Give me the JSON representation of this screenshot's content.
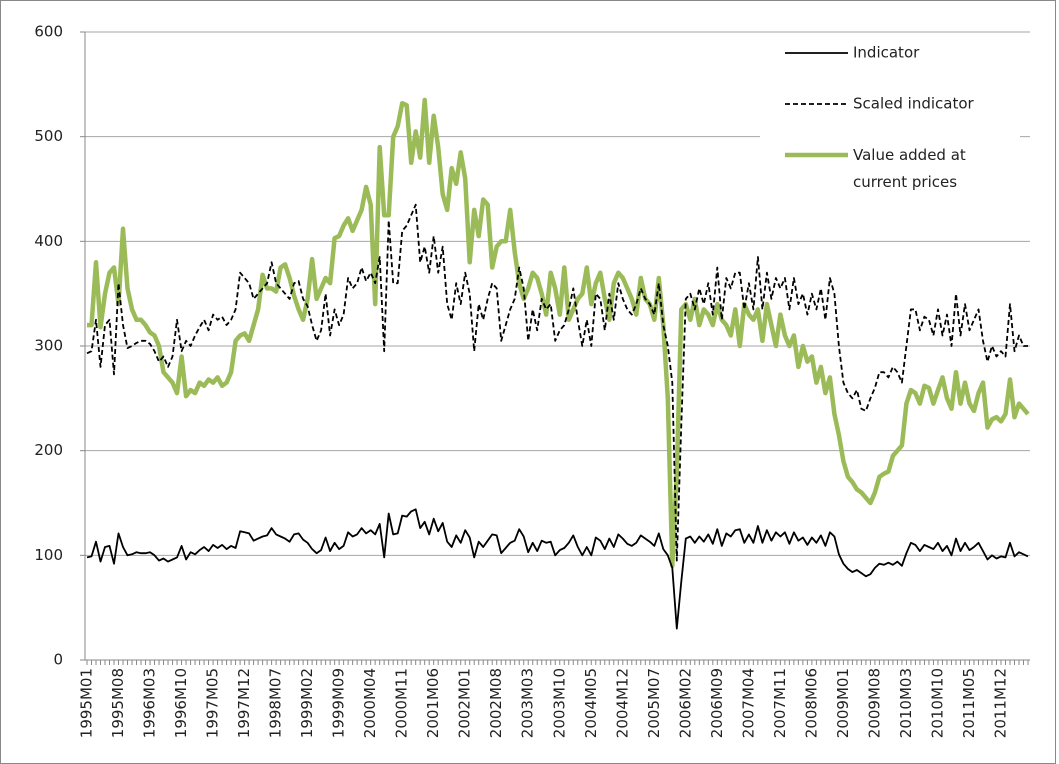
{
  "chart_data": {
    "type": "line",
    "categories": [
      "1995M01",
      null,
      null,
      null,
      null,
      null,
      null,
      "1995M08",
      null,
      null,
      null,
      null,
      null,
      null,
      "1996M03",
      null,
      null,
      null,
      null,
      null,
      null,
      "1996M10",
      null,
      null,
      null,
      null,
      null,
      null,
      "1997M05",
      null,
      null,
      null,
      null,
      null,
      null,
      "1997M12",
      null,
      null,
      null,
      null,
      null,
      null,
      "1998M07",
      null,
      null,
      null,
      null,
      null,
      null,
      "1999M02",
      null,
      null,
      null,
      null,
      null,
      null,
      "1999M09",
      null,
      null,
      null,
      null,
      null,
      null,
      "2000M04",
      null,
      null,
      null,
      null,
      null,
      null,
      "2000M11",
      null,
      null,
      null,
      null,
      null,
      null,
      "2001M06",
      null,
      null,
      null,
      null,
      null,
      null,
      "2002M01",
      null,
      null,
      null,
      null,
      null,
      null,
      "2002M08",
      null,
      null,
      null,
      null,
      null,
      null,
      "2003M03",
      null,
      null,
      null,
      null,
      null,
      null,
      "2003M10",
      null,
      null,
      null,
      null,
      null,
      null,
      "2004M05",
      null,
      null,
      null,
      null,
      null,
      null,
      "2004M12",
      null,
      null,
      null,
      null,
      null,
      null,
      "2005M07",
      null,
      null,
      null,
      null,
      null,
      null,
      "2006M02",
      null,
      null,
      null,
      null,
      null,
      null,
      "2006M09",
      null,
      null,
      null,
      null,
      null,
      null,
      "2007M04",
      null,
      null,
      null,
      null,
      null,
      null,
      "2007M11",
      null,
      null,
      null,
      null,
      null,
      null,
      "2008M06",
      null,
      null,
      null,
      null,
      null,
      null,
      "2009M01",
      null,
      null,
      null,
      null,
      null,
      null,
      "2009M08",
      null,
      null,
      null,
      null,
      null,
      null,
      "2010M03",
      null,
      null,
      null,
      null,
      null,
      null,
      "2010M10",
      null,
      null,
      null,
      null,
      null,
      null,
      "2011M05",
      null,
      null,
      null,
      null,
      null,
      null,
      "2011M12",
      null,
      null,
      null,
      null,
      null,
      null
    ],
    "series": [
      {
        "name": "Indicator",
        "color": "#000000",
        "dash": "solid",
        "values": [
          98,
          99,
          113,
          94,
          108,
          109,
          92,
          121,
          108,
          100,
          101,
          103,
          102,
          102,
          103,
          100,
          95,
          97,
          94,
          96,
          98,
          109,
          96,
          103,
          101,
          105,
          108,
          104,
          110,
          107,
          110,
          106,
          109,
          107,
          123,
          122,
          121,
          114,
          116,
          118,
          119,
          126,
          120,
          118,
          116,
          113,
          120,
          121,
          115,
          112,
          106,
          102,
          105,
          117,
          104,
          112,
          106,
          109,
          122,
          118,
          120,
          126,
          121,
          124,
          120,
          130,
          98,
          140,
          120,
          121,
          138,
          137,
          142,
          144,
          126,
          132,
          120,
          135,
          123,
          131,
          113,
          108,
          119,
          112,
          124,
          117,
          98,
          113,
          108,
          114,
          120,
          119,
          102,
          107,
          112,
          114,
          125,
          118,
          103,
          112,
          104,
          114,
          112,
          113,
          100,
          105,
          107,
          112,
          119,
          108,
          100,
          108,
          100,
          117,
          114,
          106,
          116,
          108,
          120,
          116,
          111,
          109,
          112,
          119,
          116,
          113,
          109,
          121,
          106,
          100,
          88,
          30,
          75,
          116,
          118,
          112,
          118,
          113,
          120,
          111,
          125,
          109,
          121,
          118,
          124,
          125,
          112,
          120,
          112,
          128,
          112,
          124,
          114,
          122,
          118,
          122,
          111,
          122,
          114,
          117,
          110,
          117,
          112,
          119,
          109,
          122,
          118,
          101,
          92,
          87,
          84,
          86,
          83,
          80,
          82,
          88,
          92,
          91,
          93,
          91,
          94,
          90,
          102,
          112,
          110,
          104,
          110,
          108,
          106,
          112,
          104,
          109,
          100,
          116,
          104,
          112,
          105,
          108,
          112,
          104,
          96,
          100,
          97,
          99,
          98,
          112,
          99,
          103,
          101,
          99
        ]
      },
      {
        "name": "Scaled indicator",
        "color": "#000000",
        "dash": "dashed",
        "values": [
          293,
          295,
          325,
          280,
          320,
          325,
          273,
          360,
          320,
          298,
          300,
          303,
          305,
          305,
          302,
          295,
          285,
          290,
          280,
          290,
          325,
          295,
          305,
          300,
          310,
          318,
          325,
          315,
          330,
          325,
          328,
          320,
          325,
          335,
          370,
          365,
          360,
          345,
          350,
          355,
          360,
          380,
          360,
          355,
          350,
          345,
          360,
          362,
          345,
          338,
          320,
          305,
          315,
          350,
          310,
          335,
          320,
          330,
          365,
          355,
          360,
          375,
          362,
          370,
          360,
          385,
          295,
          420,
          360,
          360,
          410,
          415,
          425,
          435,
          380,
          395,
          370,
          405,
          370,
          395,
          340,
          325,
          360,
          340,
          370,
          350,
          295,
          340,
          325,
          345,
          360,
          355,
          305,
          320,
          335,
          345,
          375,
          355,
          305,
          335,
          315,
          345,
          335,
          340,
          305,
          315,
          320,
          335,
          355,
          325,
          300,
          325,
          300,
          350,
          345,
          315,
          350,
          325,
          360,
          345,
          335,
          330,
          340,
          355,
          345,
          340,
          330,
          360,
          320,
          300,
          265,
          95,
          225,
          345,
          350,
          335,
          355,
          340,
          360,
          330,
          375,
          325,
          365,
          355,
          370,
          370,
          335,
          360,
          335,
          385,
          335,
          370,
          345,
          365,
          355,
          365,
          335,
          365,
          340,
          350,
          330,
          350,
          335,
          355,
          325,
          365,
          350,
          300,
          265,
          255,
          250,
          258,
          240,
          238,
          250,
          260,
          275,
          275,
          270,
          280,
          275,
          265,
          300,
          335,
          335,
          315,
          328,
          325,
          310,
          335,
          310,
          330,
          300,
          350,
          310,
          340,
          315,
          325,
          335,
          305,
          285,
          300,
          290,
          295,
          290,
          340,
          295,
          310,
          300,
          300
        ]
      },
      {
        "name": "Value added at current prices",
        "color": "#9bbb59",
        "dash": "solid",
        "values": [
          320,
          320,
          380,
          318,
          350,
          370,
          375,
          340,
          412,
          355,
          335,
          325,
          325,
          320,
          313,
          310,
          300,
          275,
          270,
          265,
          255,
          290,
          252,
          258,
          255,
          265,
          262,
          268,
          265,
          270,
          262,
          265,
          275,
          305,
          310,
          312,
          305,
          320,
          335,
          368,
          355,
          355,
          352,
          375,
          378,
          365,
          348,
          335,
          325,
          345,
          383,
          345,
          355,
          365,
          360,
          403,
          405,
          415,
          422,
          410,
          420,
          430,
          452,
          435,
          340,
          490,
          425,
          425,
          500,
          510,
          532,
          530,
          475,
          505,
          480,
          535,
          475,
          520,
          490,
          445,
          430,
          470,
          455,
          485,
          460,
          380,
          430,
          405,
          440,
          435,
          375,
          395,
          400,
          400,
          430,
          390,
          360,
          345,
          355,
          370,
          365,
          350,
          330,
          370,
          355,
          330,
          375,
          325,
          335,
          345,
          350,
          375,
          340,
          360,
          370,
          345,
          325,
          360,
          370,
          365,
          355,
          345,
          330,
          365,
          345,
          340,
          325,
          365,
          320,
          250,
          90,
          180,
          335,
          340,
          325,
          345,
          320,
          335,
          330,
          320,
          340,
          325,
          320,
          310,
          335,
          300,
          340,
          330,
          325,
          335,
          305,
          340,
          320,
          300,
          330,
          310,
          300,
          310,
          280,
          300,
          285,
          290,
          265,
          280,
          255,
          270,
          235,
          215,
          190,
          175,
          170,
          163,
          160,
          155,
          150,
          160,
          175,
          178,
          180,
          195,
          200,
          205,
          245,
          258,
          255,
          245,
          262,
          260,
          245,
          258,
          270,
          250,
          240,
          275,
          245,
          265,
          245,
          238,
          255,
          265,
          222,
          230,
          232,
          228,
          235,
          268,
          232,
          245,
          240,
          235
        ]
      }
    ],
    "ylim": [
      0,
      600
    ],
    "yticks": [
      0,
      100,
      200,
      300,
      400,
      500,
      600
    ],
    "grid": true,
    "legend": "top-right"
  }
}
